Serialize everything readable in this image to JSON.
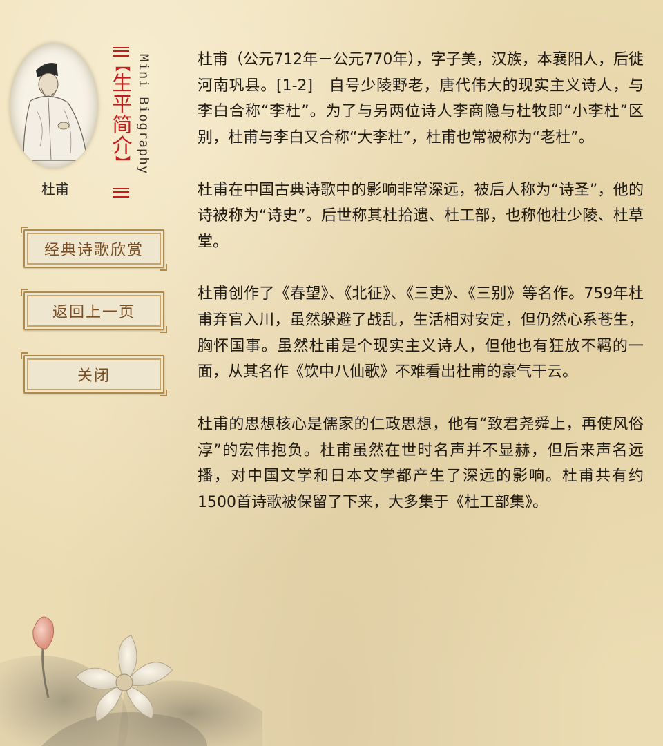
{
  "portrait": {
    "caption": "杜甫"
  },
  "section": {
    "title": "生平简介",
    "subtitle": "Mini Biography",
    "open_bracket": "【",
    "close_bracket": "】"
  },
  "nav": {
    "classic_poems": "经典诗歌欣赏",
    "back": "返回上一页",
    "close": "关闭"
  },
  "bio": {
    "p1": "杜甫（公元712年－公元770年），字子美，汉族，本襄阳人，后徙河南巩县。[1-2]　自号少陵野老，唐代伟大的现实主义诗人，与李白合称“李杜”。为了与另两位诗人李商隐与杜牧即“小李杜”区别，杜甫与李白又合称“大李杜”，杜甫也常被称为“老杜”。",
    "p2": "杜甫在中国古典诗歌中的影响非常深远，被后人称为“诗圣”，他的诗被称为“诗史”。后世称其杜拾遗、杜工部，也称他杜少陵、杜草堂。",
    "p3": "杜甫创作了《春望》、《北征》、《三吏》、《三别》等名作。759年杜甫弃官入川，虽然躲避了战乱，生活相对安定，但仍然心系苍生，胸怀国事。虽然杜甫是个现实主义诗人，但他也有狂放不羁的一面，从其名作《饮中八仙歌》不难看出杜甫的豪气干云。",
    "p4": "杜甫的思想核心是儒家的仁政思想，他有“致君尧舜上，再使风俗淳”的宏伟抱负。杜甫虽然在世时名声并不显赫，但后来声名远播，对中国文学和日本文学都产生了深远的影响。杜甫共有约1500首诗歌被保留了下来，大多集于《杜工部集》。"
  },
  "colors": {
    "accent": "#c21e1e",
    "button_text": "#7a4d22",
    "background": "#ecdcb3"
  },
  "icons": {
    "portrait": "poet-portrait-icon",
    "decoration": "lotus-painting-icon"
  }
}
